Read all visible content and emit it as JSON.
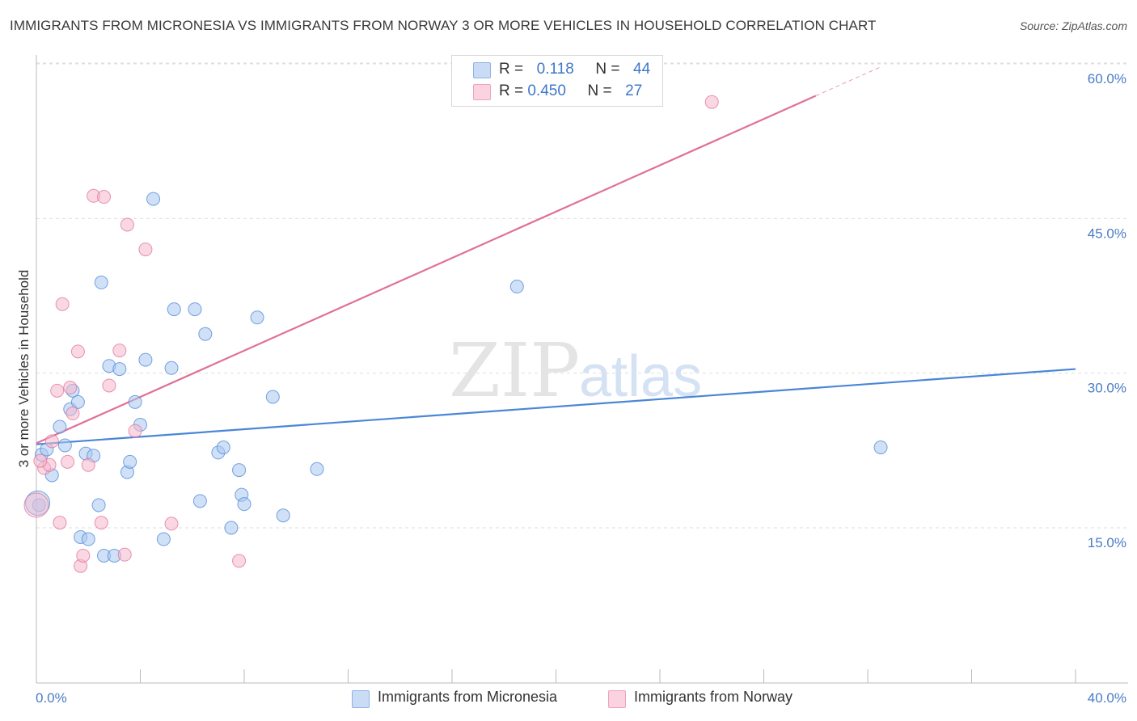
{
  "title": "IMMIGRANTS FROM MICRONESIA VS IMMIGRANTS FROM NORWAY 3 OR MORE VEHICLES IN HOUSEHOLD CORRELATION CHART",
  "source": "Source: ZipAtlas.com",
  "watermark": {
    "zip": "ZIP",
    "atlas": "atlas"
  },
  "legend": {
    "rows": [
      {
        "r_label": "R = ",
        "r_value": "0.118",
        "n_label": "N = ",
        "n_value": "44",
        "color": "#aac8f0"
      },
      {
        "r_label": "R = ",
        "r_value": "0.450",
        "n_label": "N = ",
        "n_value": "27",
        "color": "#f6b8cc"
      }
    ]
  },
  "chart_data": {
    "type": "scatter",
    "title": "IMMIGRANTS FROM MICRONESIA VS IMMIGRANTS FROM NORWAY 3 OR MORE VEHICLES IN HOUSEHOLD CORRELATION CHART",
    "xlabel": "",
    "ylabel": "3 or more Vehicles in Household",
    "xlim": [
      0,
      40
    ],
    "ylim": [
      0,
      63
    ],
    "x_tick_labels": [
      "0.0%",
      "40.0%"
    ],
    "y_ticks": [
      15,
      30,
      45,
      60
    ],
    "y_tick_labels": [
      "15.0%",
      "30.0%",
      "45.0%",
      "60.0%"
    ],
    "grid": true,
    "legend_position": "top-center",
    "series": [
      {
        "name": "Immigrants from Micronesia",
        "color": "#4a86d8",
        "fill": "#aac8f0",
        "trend": {
          "x": [
            0,
            40
          ],
          "y": [
            23.1,
            30.4
          ]
        },
        "points": [
          [
            0.1,
            17.2
          ],
          [
            0.2,
            22.1
          ],
          [
            0.4,
            22.6
          ],
          [
            0.6,
            20.1
          ],
          [
            0.9,
            24.8
          ],
          [
            1.1,
            23.0
          ],
          [
            1.3,
            26.5
          ],
          [
            1.4,
            28.3
          ],
          [
            1.6,
            27.2
          ],
          [
            1.7,
            14.1
          ],
          [
            1.9,
            22.2
          ],
          [
            2.0,
            13.9
          ],
          [
            2.2,
            22.0
          ],
          [
            2.4,
            17.2
          ],
          [
            2.5,
            38.8
          ],
          [
            2.6,
            12.3
          ],
          [
            2.8,
            30.7
          ],
          [
            3.0,
            12.3
          ],
          [
            3.2,
            30.4
          ],
          [
            3.5,
            20.4
          ],
          [
            3.6,
            21.4
          ],
          [
            3.8,
            27.2
          ],
          [
            4.0,
            25.0
          ],
          [
            4.2,
            31.3
          ],
          [
            4.5,
            46.9
          ],
          [
            4.9,
            13.9
          ],
          [
            5.2,
            30.5
          ],
          [
            5.3,
            36.2
          ],
          [
            6.1,
            36.2
          ],
          [
            6.3,
            17.6
          ],
          [
            6.5,
            33.8
          ],
          [
            7.0,
            22.3
          ],
          [
            7.2,
            22.8
          ],
          [
            7.5,
            15.0
          ],
          [
            7.8,
            20.6
          ],
          [
            7.9,
            18.2
          ],
          [
            8.0,
            17.3
          ],
          [
            8.5,
            35.4
          ],
          [
            9.1,
            27.7
          ],
          [
            9.5,
            16.2
          ],
          [
            10.8,
            20.7
          ],
          [
            18.5,
            38.4
          ],
          [
            32.5,
            22.8
          ],
          [
            0.05,
            17.4
          ]
        ]
      },
      {
        "name": "Immigrants from Norway",
        "color": "#e07099",
        "fill": "#f6b8cc",
        "trend": {
          "x": [
            0,
            30
          ],
          "y": [
            23.2,
            56.9
          ]
        },
        "trend_dashed": {
          "x": [
            30,
            32.5
          ],
          "y": [
            56.9,
            59.7
          ]
        },
        "points": [
          [
            0.0,
            17.2
          ],
          [
            0.3,
            20.8
          ],
          [
            0.5,
            21.1
          ],
          [
            0.6,
            23.4
          ],
          [
            0.8,
            28.3
          ],
          [
            0.9,
            15.5
          ],
          [
            1.0,
            36.7
          ],
          [
            1.2,
            21.4
          ],
          [
            1.3,
            28.6
          ],
          [
            1.4,
            26.1
          ],
          [
            1.6,
            32.1
          ],
          [
            1.7,
            11.3
          ],
          [
            1.8,
            12.3
          ],
          [
            2.0,
            21.1
          ],
          [
            2.2,
            47.2
          ],
          [
            2.5,
            15.5
          ],
          [
            2.6,
            47.1
          ],
          [
            2.8,
            28.8
          ],
          [
            3.2,
            32.2
          ],
          [
            3.4,
            12.4
          ],
          [
            3.5,
            44.4
          ],
          [
            3.8,
            24.4
          ],
          [
            4.2,
            42.0
          ],
          [
            5.2,
            15.4
          ],
          [
            7.8,
            11.8
          ],
          [
            26.0,
            56.3
          ],
          [
            0.15,
            21.5
          ]
        ]
      }
    ]
  }
}
